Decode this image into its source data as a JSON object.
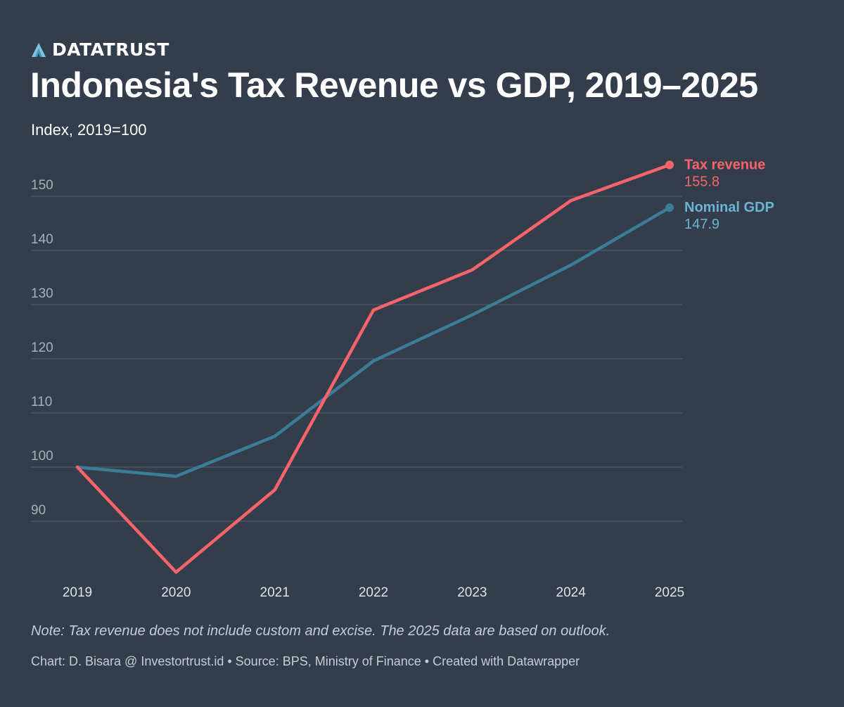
{
  "brand": {
    "name": "DATATRUST"
  },
  "chart_data": {
    "type": "line",
    "title": "Indonesia's Tax Revenue vs GDP, 2019–2025",
    "subtitle": "Index, 2019=100",
    "x": [
      "2019",
      "2020",
      "2021",
      "2022",
      "2023",
      "2024",
      "2025"
    ],
    "series": [
      {
        "name": "Tax revenue",
        "color": "#f9636a",
        "label_value": "155.8",
        "values": [
          100,
          80.6,
          95.8,
          129.0,
          136.4,
          149.2,
          155.8
        ]
      },
      {
        "name": "Nominal GDP",
        "color": "#3b7d96",
        "label_color": "#6bb3d2",
        "label_value": "147.9",
        "values": [
          100,
          98.3,
          105.7,
          119.6,
          128.1,
          137.3,
          147.9
        ]
      }
    ],
    "yticks": [
      "90",
      "100",
      "110",
      "120",
      "130",
      "140",
      "150"
    ],
    "ylim": [
      79,
      158
    ],
    "grid": true,
    "legend": "direct labels at line ends"
  },
  "footer": {
    "note": "Note: Tax revenue does not include custom and excise. The 2025 data are based on outlook.",
    "credit": "Chart: D. Bisara @ Investortrust.id • Source: BPS, Ministry of Finance • Created with Datawrapper"
  },
  "colors": {
    "background": "#333d4c",
    "grid": "#4e5867"
  }
}
